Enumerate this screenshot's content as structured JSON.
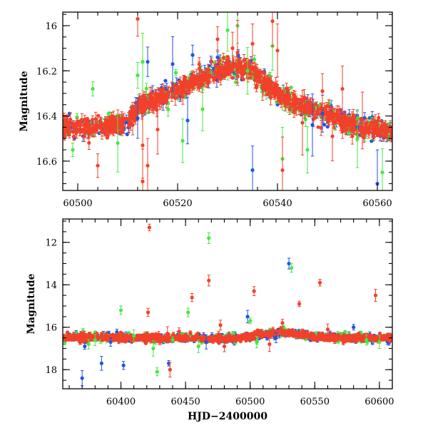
{
  "chart_data": [
    {
      "type": "scatter",
      "panel": "top",
      "ylabel": "Magnitude",
      "xlabel": "",
      "xlim": [
        60497,
        60563
      ],
      "ylim": [
        16.73,
        15.94
      ],
      "y_inverted": true,
      "x_ticks": [
        60500,
        60520,
        60540,
        60560
      ],
      "x_tick_labels": [
        "60500",
        "60520",
        "60540",
        "60560"
      ],
      "y_ticks": [
        16,
        16.2,
        16.4,
        16.6
      ],
      "y_tick_labels": [
        "16",
        "16.2",
        "16.4",
        "16.6"
      ],
      "grid": false,
      "colors": {
        "series_a": "#1e56e0",
        "series_b": "#44e844",
        "series_c": "#f2402a"
      },
      "baseline_curve": [
        [
          60497,
          16.45
        ],
        [
          60505,
          16.45
        ],
        [
          60510,
          16.43
        ],
        [
          60512,
          16.36
        ],
        [
          60520,
          16.29
        ],
        [
          60526,
          16.22
        ],
        [
          60530,
          16.18
        ],
        [
          60534,
          16.19
        ],
        [
          60538,
          16.26
        ],
        [
          60542,
          16.33
        ],
        [
          60548,
          16.38
        ],
        [
          60552,
          16.41
        ],
        [
          60556,
          16.45
        ],
        [
          60563,
          16.47
        ]
      ],
      "outliers": {
        "series_a": [
          [
            60512,
            16.41
          ],
          [
            60514,
            16.16
          ],
          [
            60519,
            16.17
          ],
          [
            60523,
            16.13
          ],
          [
            60528,
            16.14
          ],
          [
            60535,
            16.64
          ],
          [
            60547,
            16.44
          ],
          [
            60556,
            16.45
          ],
          [
            60560,
            16.7
          ],
          [
            60522,
            16.42
          ],
          [
            60549,
            16.39
          ]
        ],
        "series_b": [
          [
            60499,
            16.55
          ],
          [
            60503,
            16.28
          ],
          [
            60508,
            16.52
          ],
          [
            60513,
            16.16
          ],
          [
            60521,
            16.51
          ],
          [
            60525,
            16.37
          ],
          [
            60530,
            16.02
          ],
          [
            60534,
            16.2
          ],
          [
            60539,
            16.09
          ],
          [
            60541,
            16.59
          ],
          [
            60546,
            16.55
          ],
          [
            60556,
            16.5
          ],
          [
            60561,
            16.65
          ],
          [
            60512,
            16.22
          ],
          [
            60532,
            16.0
          ]
        ],
        "series_c": [
          [
            60504,
            16.62
          ],
          [
            60511,
            16.44
          ],
          [
            60512,
            15.97
          ],
          [
            60513,
            16.53
          ],
          [
            60514,
            16.62
          ],
          [
            60516,
            16.46
          ],
          [
            60528,
            16.06
          ],
          [
            60531,
            16.1
          ],
          [
            60532,
            16.12
          ],
          [
            60535,
            16.08
          ],
          [
            60537,
            16.27
          ],
          [
            60539,
            15.98
          ],
          [
            60540,
            16.11
          ],
          [
            60541,
            16.64
          ],
          [
            60545,
            16.43
          ],
          [
            60549,
            16.29
          ],
          [
            60551,
            16.49
          ],
          [
            60553,
            16.28
          ],
          [
            60555,
            16.49
          ],
          [
            60557,
            16.42
          ],
          [
            60513,
            16.69
          ]
        ]
      }
    },
    {
      "type": "scatter",
      "panel": "bottom",
      "ylabel": "Magnitude",
      "xlabel": "HJD−2400000",
      "xlim": [
        60355,
        60610
      ],
      "ylim": [
        18.9,
        10.9
      ],
      "y_inverted": true,
      "x_ticks": [
        60400,
        60450,
        60500,
        60550,
        60600
      ],
      "x_tick_labels": [
        "60400",
        "60450",
        "60500",
        "60550",
        "60600"
      ],
      "y_ticks": [
        12,
        14,
        16,
        18
      ],
      "y_tick_labels": [
        "12",
        "14",
        "16",
        "18"
      ],
      "grid": false,
      "colors": {
        "series_a": "#1e56e0",
        "series_b": "#44e844",
        "series_c": "#f2402a"
      },
      "baseline_curve": [
        [
          60360,
          16.45
        ],
        [
          60400,
          16.5
        ],
        [
          60450,
          16.5
        ],
        [
          60470,
          16.55
        ],
        [
          60490,
          16.5
        ],
        [
          60510,
          16.35
        ],
        [
          60525,
          16.2
        ],
        [
          60535,
          16.3
        ],
        [
          60550,
          16.45
        ],
        [
          60570,
          16.5
        ],
        [
          60605,
          16.5
        ]
      ],
      "outliers": {
        "series_a": [
          [
            60370,
            18.4
          ],
          [
            60385,
            17.7
          ],
          [
            60402,
            17.8
          ],
          [
            60437,
            17.7
          ],
          [
            60466,
            16.7
          ],
          [
            60498,
            15.5
          ],
          [
            60530,
            13.0
          ],
          [
            60372,
            16.9
          ],
          [
            60392,
            16.7
          ],
          [
            60520,
            16.5
          ],
          [
            60580,
            16.0
          ]
        ],
        "series_b": [
          [
            60375,
            16.8
          ],
          [
            60380,
            16.6
          ],
          [
            60400,
            15.2
          ],
          [
            60410,
            16.4
          ],
          [
            60425,
            17.0
          ],
          [
            60428,
            18.1
          ],
          [
            60440,
            16.6
          ],
          [
            60452,
            15.3
          ],
          [
            60468,
            11.8
          ],
          [
            60500,
            15.7
          ],
          [
            60505,
            16.7
          ],
          [
            60532,
            13.2
          ],
          [
            60590,
            16.6
          ],
          [
            60600,
            16.7
          ],
          [
            60460,
            16.9
          ]
        ],
        "series_c": [
          [
            60422,
            11.3
          ],
          [
            60421,
            15.3
          ],
          [
            60436,
            16.3
          ],
          [
            60438,
            18.0
          ],
          [
            60455,
            14.6
          ],
          [
            60468,
            13.8
          ],
          [
            60477,
            15.9
          ],
          [
            60480,
            16.9
          ],
          [
            60503,
            14.3
          ],
          [
            60525,
            15.8
          ],
          [
            60538,
            14.9
          ],
          [
            60554,
            13.9
          ],
          [
            60597,
            14.5
          ],
          [
            60445,
            16.2
          ],
          [
            60515,
            16.8
          ],
          [
            60560,
            16.1
          ]
        ]
      }
    }
  ]
}
